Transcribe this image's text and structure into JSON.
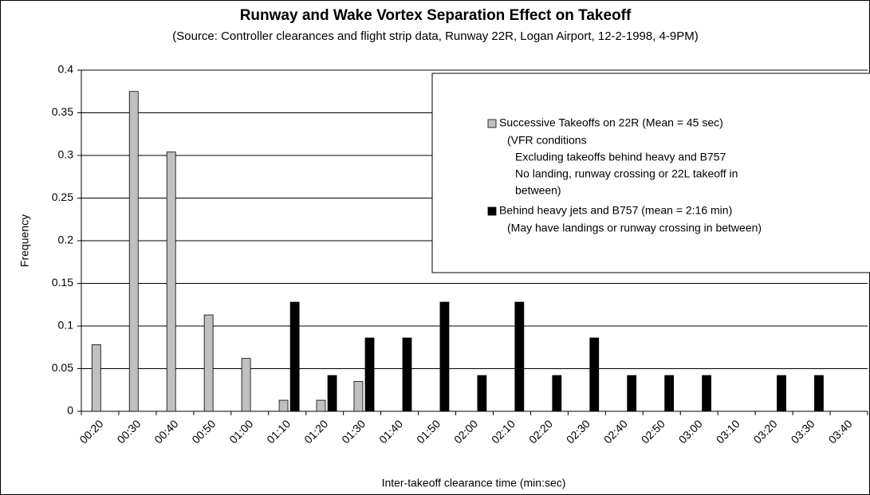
{
  "chart_data": {
    "type": "bar",
    "title": "Runway and Wake Vortex Separation Effect on Takeoff",
    "subtitle": "(Source: Controller clearances and flight strip data, Runway 22R, Logan Airport, 12-2-1998, 4-9PM)",
    "x_label": "Inter-takeoff clearance time (min:sec)",
    "y_label": "Frequency",
    "categories": [
      "00:20",
      "00:30",
      "00:40",
      "00:50",
      "01:00",
      "01:10",
      "01:20",
      "01:30",
      "01:40",
      "01:50",
      "02:00",
      "02:10",
      "02:20",
      "02:30",
      "02:40",
      "02:50",
      "03:00",
      "03:10",
      "03:20",
      "03:30",
      "03:40"
    ],
    "series": [
      {
        "name": "Successive Takeoffs on 22R (Mean = 45 sec)",
        "color": "#c0c0c0",
        "note_lines": [
          "(VFR conditions",
          "Excluding takeoffs behind heavy and B757",
          "No landing, runway crossing or 22L takeoff in",
          "between)"
        ],
        "values": [
          0.078,
          0.375,
          0.304,
          0.113,
          0.062,
          0.013,
          0.013,
          0.035,
          0,
          0,
          0,
          0,
          0,
          0,
          0,
          0,
          0,
          0,
          0,
          0,
          0
        ]
      },
      {
        "name": "Behind heavy jets and B757 (mean = 2:16 min)",
        "color": "#000000",
        "note_lines": [
          "(May have landings or runway crossing in between)"
        ],
        "values": [
          0,
          0,
          0,
          0,
          0,
          0.128,
          0.042,
          0.086,
          0.086,
          0.128,
          0.042,
          0.128,
          0.042,
          0.086,
          0.042,
          0.042,
          0.042,
          0,
          0.042,
          0.042,
          0
        ]
      }
    ],
    "ylim": [
      0,
      0.4
    ],
    "yticks": [
      0,
      0.05,
      0.1,
      0.15,
      0.2,
      0.25,
      0.3,
      0.35,
      0.4
    ],
    "grid": true
  }
}
